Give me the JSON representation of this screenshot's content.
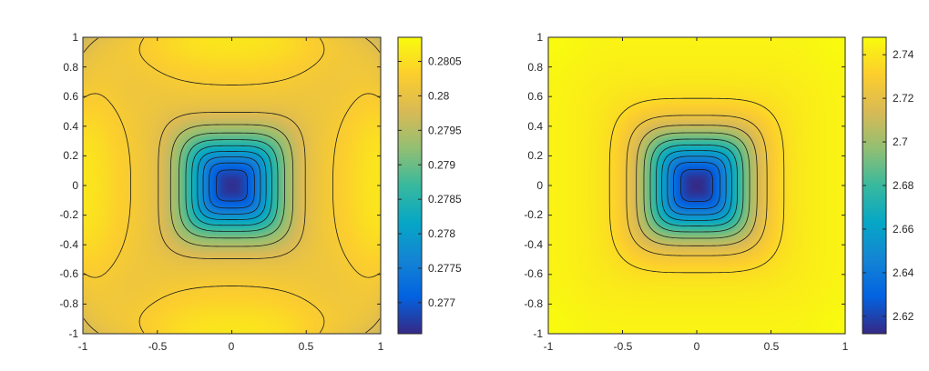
{
  "chart_data": [
    {
      "type": "heatmap",
      "name": "left-panel",
      "title": "",
      "xlabel": "",
      "ylabel": "",
      "xlim": [
        -1,
        1
      ],
      "ylim": [
        -1,
        1
      ],
      "x_ticks": [
        "-1",
        "-0.5",
        "0",
        "0.5",
        "1"
      ],
      "x_tick_values": [
        -1,
        -0.5,
        0,
        0.5,
        1
      ],
      "y_ticks": [
        "1",
        "0.8",
        "0.6",
        "0.4",
        "0.2",
        "0",
        "-0.2",
        "-0.4",
        "-0.6",
        "-0.8",
        "-1"
      ],
      "y_tick_values": [
        1,
        0.8,
        0.6,
        0.4,
        0.2,
        0,
        -0.2,
        -0.4,
        -0.6,
        -0.8,
        -1
      ],
      "clim": [
        0.27655,
        0.28085
      ],
      "colorbar_ticks": [
        "0.2805",
        "0.28",
        "0.2795",
        "0.279",
        "0.2785",
        "0.278",
        "0.2775",
        "0.277"
      ],
      "colorbar_tick_values": [
        0.2805,
        0.28,
        0.2795,
        0.279,
        0.2785,
        0.278,
        0.2775,
        0.277
      ],
      "colormap": "parula",
      "field": {
        "base": 0.2802,
        "well_depth": 0.0036,
        "well_width": 0.32,
        "corner_dip": 0.0014,
        "edge_bump": 0.0004
      },
      "contour_levels": 10
    },
    {
      "type": "heatmap",
      "name": "right-panel",
      "title": "",
      "xlabel": "",
      "ylabel": "",
      "xlim": [
        -1,
        1
      ],
      "ylim": [
        -1,
        1
      ],
      "x_ticks": [
        "-1",
        "-0.5",
        "0",
        "0.5",
        "1"
      ],
      "x_tick_values": [
        -1,
        -0.5,
        0,
        0.5,
        1
      ],
      "y_ticks": [
        "1",
        "0.8",
        "0.6",
        "0.4",
        "0.2",
        "0",
        "-0.2",
        "-0.4",
        "-0.6",
        "-0.8",
        "-1"
      ],
      "y_tick_values": [
        1,
        0.8,
        0.6,
        0.4,
        0.2,
        0,
        -0.2,
        -0.4,
        -0.6,
        -0.8,
        -1
      ],
      "clim": [
        2.612,
        2.748
      ],
      "colorbar_ticks": [
        "2.74",
        "2.72",
        "2.7",
        "2.68",
        "2.66",
        "2.64",
        "2.62"
      ],
      "colorbar_tick_values": [
        2.74,
        2.72,
        2.7,
        2.68,
        2.66,
        2.64,
        2.62
      ],
      "colormap": "parula",
      "field": {
        "base": 2.742,
        "well_depth": 0.13,
        "well_width": 0.34,
        "corner_dip": 0.0,
        "edge_bump": 0.003
      },
      "contour_levels": 10
    }
  ],
  "colors": {
    "parula": [
      "#352a87",
      "#0363e1",
      "#1485d4",
      "#06a7c6",
      "#38b99e",
      "#92bf73",
      "#d9ba56",
      "#fcce2e",
      "#f9fb0e"
    ],
    "contour": "#1a1a1a",
    "axis": "#262626"
  }
}
